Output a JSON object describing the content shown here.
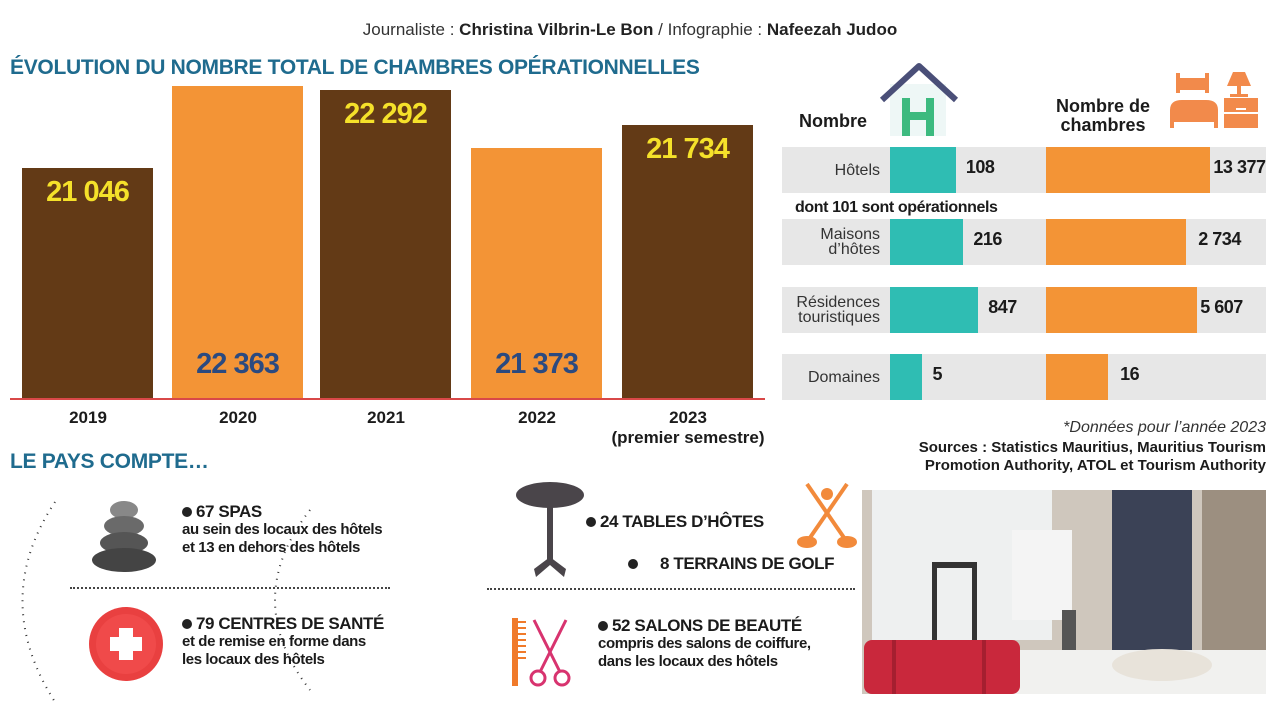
{
  "credit": {
    "journalist_label": "Journaliste :",
    "journalist": "Christina Vilbrin-Le Bon",
    "sep": " / ",
    "infographic_label": "Infographie :",
    "infographic": "Nafeezah Judoo"
  },
  "chart_data": [
    {
      "type": "bar",
      "title": "ÉVOLUTION DU NOMBRE TOTAL DE CHAMBRES OPÉRATIONNELLES",
      "categories": [
        "2019",
        "2020",
        "2021",
        "2022",
        "2023 (premier semestre)"
      ],
      "category_lines": [
        [
          "2019"
        ],
        [
          "2020"
        ],
        [
          "2021"
        ],
        [
          "2022"
        ],
        [
          "2023",
          "(premier semestre)"
        ]
      ],
      "values": [
        21046,
        22363,
        22292,
        21373,
        21734
      ],
      "value_labels": [
        "21 046",
        "22 363",
        "22 292",
        "21 373",
        "21 734"
      ],
      "colors": [
        "#633a16",
        "#f39436",
        "#633a16",
        "#f39436",
        "#633a16"
      ],
      "label_colors": {
        "dark": "#f5e12a",
        "light": "#2b4a80"
      }
    },
    {
      "type": "bar",
      "orientation": "horizontal",
      "categories": [
        "Hôtels",
        "Maisons d’hôtes",
        "Résidences touristiques",
        "Domaines"
      ],
      "series": [
        {
          "name": "Nombre",
          "values": [
            108,
            216,
            847,
            5
          ],
          "labels": [
            "108",
            "216",
            "847",
            "5"
          ],
          "color": "#2fbdb3"
        },
        {
          "name": "Nombre de chambres",
          "values": [
            13377,
            2734,
            5607,
            16
          ],
          "labels": [
            "13 377",
            "2 734",
            "5 607",
            "16"
          ],
          "color": "#f39436"
        }
      ],
      "annotation": "dont 101 sont opérationnels",
      "note": "*Données pour l’année 2023",
      "sources": [
        "Sources : Statistics Mauritius, Mauritius Tourism",
        "Promotion Authority, ATOL et Tourism Authority"
      ]
    }
  ],
  "icons": {
    "hotel": "hotel-house-icon",
    "room": "bed-and-nightstand-icon"
  },
  "country": {
    "title": "LE PAYS COMPTE…",
    "items": [
      {
        "title": "67 SPAS",
        "desc": [
          "au sein des locaux des hôtels",
          "et 13 en dehors des hôtels"
        ],
        "icon": "stacked-stones-icon"
      },
      {
        "title": "79 CENTRES DE SANTÉ",
        "desc": [
          "et de remise en forme dans",
          "les locaux des hôtels"
        ],
        "icon": "medical-cross-icon"
      },
      {
        "title": "24 TABLES D’HÔTES",
        "desc": [],
        "icon": "table-icon"
      },
      {
        "title": "8 TERRAINS DE GOLF",
        "desc": [],
        "icon": "golf-icon"
      },
      {
        "title": "52 SALONS DE BEAUTÉ",
        "desc": [
          "compris des salons de coiffure,",
          "dans les locaux des hôtels"
        ],
        "icon": "comb-scissors-icon"
      }
    ]
  }
}
